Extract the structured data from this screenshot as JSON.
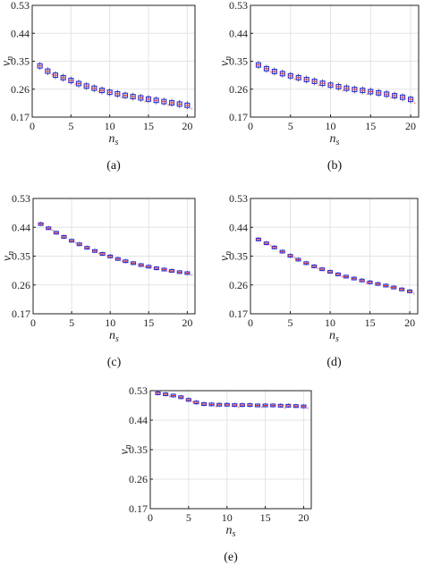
{
  "chart_data": [
    {
      "type": "box",
      "caption": "(a)",
      "xlabel": "n_s",
      "ylabel": "ν_n",
      "xlim": [
        0,
        21
      ],
      "ylim": [
        0.17,
        0.53
      ],
      "xticks": [
        "0",
        "5",
        "10",
        "15",
        "20"
      ],
      "yticks": [
        "0.17",
        "0.26",
        "0.35",
        "0.44",
        "0.53"
      ],
      "grid": true,
      "x": [
        1,
        2,
        3,
        4,
        5,
        6,
        7,
        8,
        9,
        10,
        11,
        12,
        13,
        14,
        15,
        16,
        17,
        18,
        19,
        20
      ],
      "values": [
        0.335,
        0.318,
        0.305,
        0.297,
        0.288,
        0.278,
        0.27,
        0.263,
        0.256,
        0.25,
        0.245,
        0.24,
        0.236,
        0.232,
        0.228,
        0.224,
        0.22,
        0.216,
        0.212,
        0.208
      ]
    },
    {
      "type": "box",
      "caption": "(b)",
      "xlabel": "n_s",
      "ylabel": "ν_n",
      "xlim": [
        0,
        21
      ],
      "ylim": [
        0.17,
        0.53
      ],
      "xticks": [
        "0",
        "5",
        "10",
        "15",
        "20"
      ],
      "yticks": [
        "0.17",
        "0.26",
        "0.35",
        "0.44",
        "0.53"
      ],
      "grid": true,
      "x": [
        1,
        2,
        3,
        4,
        5,
        6,
        7,
        8,
        9,
        10,
        11,
        12,
        13,
        14,
        15,
        16,
        17,
        18,
        19,
        20
      ],
      "values": [
        0.338,
        0.326,
        0.317,
        0.31,
        0.303,
        0.297,
        0.291,
        0.285,
        0.279,
        0.273,
        0.268,
        0.263,
        0.259,
        0.256,
        0.252,
        0.248,
        0.244,
        0.239,
        0.234,
        0.227
      ]
    },
    {
      "type": "box",
      "caption": "(c)",
      "xlabel": "n_s",
      "ylabel": "ν_n",
      "xlim": [
        0,
        21
      ],
      "ylim": [
        0.17,
        0.53
      ],
      "xticks": [
        "0",
        "5",
        "10",
        "15",
        "20"
      ],
      "yticks": [
        "0.17",
        "0.26",
        "0.35",
        "0.44",
        "0.53"
      ],
      "grid": true,
      "x": [
        1,
        2,
        3,
        4,
        5,
        6,
        7,
        8,
        9,
        10,
        11,
        12,
        13,
        14,
        15,
        16,
        17,
        18,
        19,
        20
      ],
      "values": [
        0.45,
        0.437,
        0.423,
        0.41,
        0.398,
        0.387,
        0.376,
        0.366,
        0.357,
        0.349,
        0.341,
        0.334,
        0.328,
        0.322,
        0.317,
        0.312,
        0.308,
        0.304,
        0.3,
        0.297
      ]
    },
    {
      "type": "box",
      "caption": "(d)",
      "xlabel": "n_s",
      "ylabel": "ν_n",
      "xlim": [
        0,
        21
      ],
      "ylim": [
        0.17,
        0.53
      ],
      "xticks": [
        "0",
        "5",
        "10",
        "15",
        "20"
      ],
      "yticks": [
        "0.17",
        "0.26",
        "0.35",
        "0.44",
        "0.53"
      ],
      "grid": true,
      "x": [
        1,
        2,
        3,
        4,
        5,
        6,
        7,
        8,
        9,
        10,
        11,
        12,
        13,
        14,
        15,
        16,
        17,
        18,
        19,
        20
      ],
      "values": [
        0.402,
        0.39,
        0.377,
        0.364,
        0.351,
        0.339,
        0.328,
        0.318,
        0.309,
        0.301,
        0.293,
        0.286,
        0.28,
        0.274,
        0.268,
        0.263,
        0.258,
        0.252,
        0.246,
        0.24
      ]
    },
    {
      "type": "box",
      "caption": "(e)",
      "xlabel": "n_s",
      "ylabel": "ν_n",
      "xlim": [
        0,
        21
      ],
      "ylim": [
        0.17,
        0.53
      ],
      "xticks": [
        "0",
        "5",
        "10",
        "15",
        "20"
      ],
      "yticks": [
        "0.17",
        "0.26",
        "0.35",
        "0.44",
        "0.53"
      ],
      "grid": true,
      "x": [
        1,
        2,
        3,
        4,
        5,
        6,
        7,
        8,
        9,
        10,
        11,
        12,
        13,
        14,
        15,
        16,
        17,
        18,
        19,
        20
      ],
      "values": [
        0.522,
        0.519,
        0.515,
        0.51,
        0.502,
        0.494,
        0.489,
        0.488,
        0.487,
        0.487,
        0.486,
        0.486,
        0.486,
        0.485,
        0.485,
        0.485,
        0.484,
        0.484,
        0.483,
        0.482
      ]
    }
  ],
  "colors": {
    "box": "#2b2bd6",
    "median": "#e03030",
    "whisker": "#333333",
    "grid": "#e4e4e4",
    "axis": "#222222"
  }
}
